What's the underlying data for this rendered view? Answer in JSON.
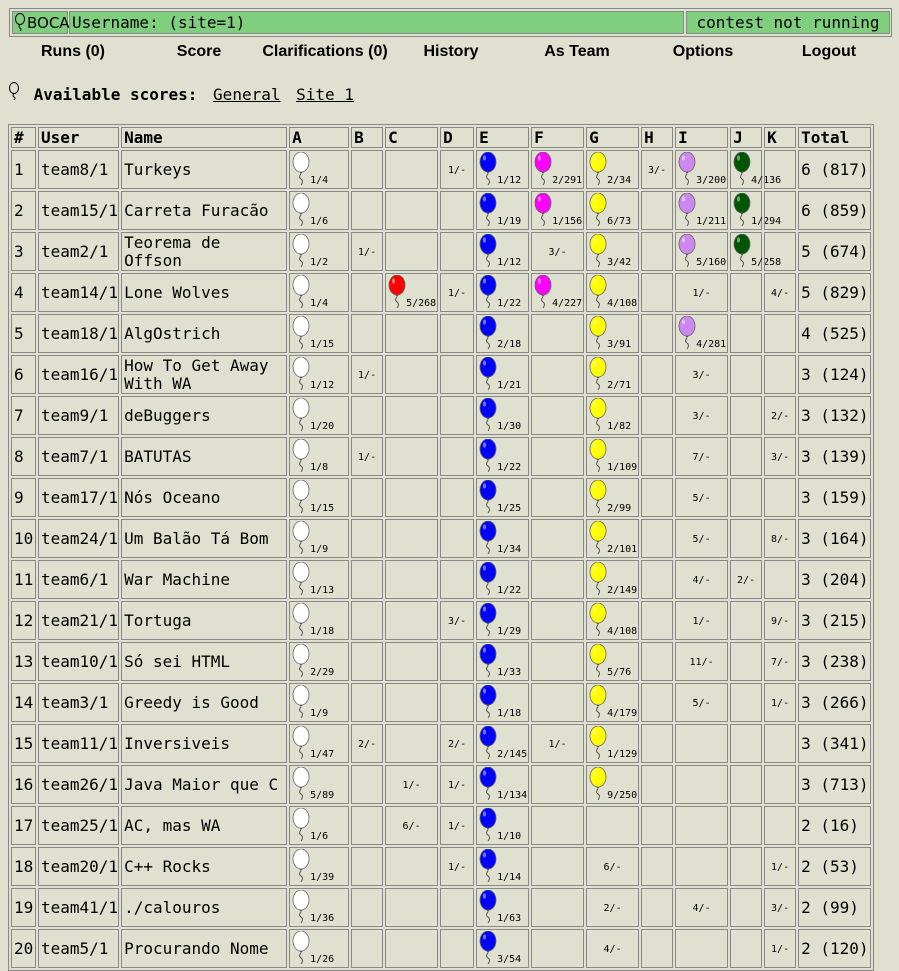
{
  "logo": {
    "text": "BOCA"
  },
  "header": {
    "username": "Username: (site=1)",
    "status": "contest not running"
  },
  "menu": [
    "Runs (0)",
    "Score",
    "Clarifications (0)",
    "History",
    "As Team",
    "Options",
    "Logout"
  ],
  "available": {
    "label": "Available scores:",
    "links": [
      "General",
      "Site 1"
    ]
  },
  "columns": [
    "#",
    "User",
    "Name",
    "A",
    "B",
    "C",
    "D",
    "E",
    "F",
    "G",
    "H",
    "I",
    "J",
    "K",
    "Total"
  ],
  "balloon_colors": {
    "A": "#ffffff",
    "C": "#ff0000",
    "E": "#0000ff",
    "F": "#ff00ff",
    "G": "#ffff00",
    "I": "#cc88ee",
    "J": "#005500"
  },
  "rows": [
    {
      "pos": "1",
      "user": "team8/1",
      "name": "Turkeys",
      "cells": {
        "A": "1/4",
        "D": "1/-",
        "E": "1/12",
        "F": "2/291",
        "G": "2/34",
        "H": "3/-",
        "I": "3/200",
        "J": "4/136"
      },
      "solved": [
        "A",
        "E",
        "F",
        "G",
        "I",
        "J"
      ],
      "total": "6 (817)"
    },
    {
      "pos": "2",
      "user": "team15/1",
      "name": "Carreta Furacão",
      "cells": {
        "A": "1/6",
        "E": "1/19",
        "F": "1/156",
        "G": "6/73",
        "I": "1/211",
        "J": "1/294"
      },
      "solved": [
        "A",
        "E",
        "F",
        "G",
        "I",
        "J"
      ],
      "total": "6 (859)"
    },
    {
      "pos": "3",
      "user": "team2/1",
      "name": "Teorema de Offson",
      "cells": {
        "A": "1/2",
        "B": "1/-",
        "E": "1/12",
        "F": "3/-",
        "G": "3/42",
        "I": "5/160",
        "J": "5/258"
      },
      "solved": [
        "A",
        "E",
        "G",
        "I",
        "J"
      ],
      "total": "5 (674)"
    },
    {
      "pos": "4",
      "user": "team14/1",
      "name": "Lone Wolves",
      "cells": {
        "A": "1/4",
        "C": "5/268",
        "D": "1/-",
        "E": "1/22",
        "F": "4/227",
        "G": "4/108",
        "I": "1/-",
        "K": "4/-"
      },
      "solved": [
        "A",
        "C",
        "E",
        "F",
        "G"
      ],
      "total": "5 (829)"
    },
    {
      "pos": "5",
      "user": "team18/1",
      "name": "AlgOstrich",
      "cells": {
        "A": "1/15",
        "E": "2/18",
        "G": "3/91",
        "I": "4/281"
      },
      "solved": [
        "A",
        "E",
        "G",
        "I"
      ],
      "total": "4 (525)"
    },
    {
      "pos": "6",
      "user": "team16/1",
      "name": "How To Get Away With WA",
      "cells": {
        "A": "1/12",
        "B": "1/-",
        "E": "1/21",
        "G": "2/71",
        "I": "3/-"
      },
      "solved": [
        "A",
        "E",
        "G"
      ],
      "total": "3 (124)"
    },
    {
      "pos": "7",
      "user": "team9/1",
      "name": "deBuggers",
      "cells": {
        "A": "1/20",
        "E": "1/30",
        "G": "1/82",
        "I": "3/-",
        "K": "2/-"
      },
      "solved": [
        "A",
        "E",
        "G"
      ],
      "total": "3 (132)"
    },
    {
      "pos": "8",
      "user": "team7/1",
      "name": "BATUTAS",
      "cells": {
        "A": "1/8",
        "B": "1/-",
        "E": "1/22",
        "G": "1/109",
        "I": "7/-",
        "K": "3/-"
      },
      "solved": [
        "A",
        "E",
        "G"
      ],
      "total": "3 (139)"
    },
    {
      "pos": "9",
      "user": "team17/1",
      "name": "Nós Oceano",
      "cells": {
        "A": "1/15",
        "E": "1/25",
        "G": "2/99",
        "I": "5/-"
      },
      "solved": [
        "A",
        "E",
        "G"
      ],
      "total": "3 (159)"
    },
    {
      "pos": "10",
      "user": "team24/1",
      "name": "Um Balão Tá Bom",
      "cells": {
        "A": "1/9",
        "E": "1/34",
        "G": "2/101",
        "I": "5/-",
        "K": "8/-"
      },
      "solved": [
        "A",
        "E",
        "G"
      ],
      "total": "3 (164)"
    },
    {
      "pos": "11",
      "user": "team6/1",
      "name": "War Machine",
      "cells": {
        "A": "1/13",
        "E": "1/22",
        "G": "2/149",
        "I": "4/-",
        "J": "2/-"
      },
      "solved": [
        "A",
        "E",
        "G"
      ],
      "total": "3 (204)"
    },
    {
      "pos": "12",
      "user": "team21/1",
      "name": "Tortuga",
      "cells": {
        "A": "1/18",
        "D": "3/-",
        "E": "1/29",
        "G": "4/108",
        "I": "1/-",
        "K": "9/-"
      },
      "solved": [
        "A",
        "E",
        "G"
      ],
      "total": "3 (215)"
    },
    {
      "pos": "13",
      "user": "team10/1",
      "name": "Só sei HTML",
      "cells": {
        "A": "2/29",
        "E": "1/33",
        "G": "5/76",
        "I": "11/-",
        "K": "7/-"
      },
      "solved": [
        "A",
        "E",
        "G"
      ],
      "total": "3 (238)"
    },
    {
      "pos": "14",
      "user": "team3/1",
      "name": "Greedy is Good",
      "cells": {
        "A": "1/9",
        "E": "1/18",
        "G": "4/179",
        "I": "5/-",
        "K": "1/-"
      },
      "solved": [
        "A",
        "E",
        "G"
      ],
      "total": "3 (266)"
    },
    {
      "pos": "15",
      "user": "team11/1",
      "name": "Inversiveis",
      "cells": {
        "A": "1/47",
        "B": "2/-",
        "D": "2/-",
        "E": "2/145",
        "F": "1/-",
        "G": "1/129"
      },
      "solved": [
        "A",
        "E",
        "G"
      ],
      "total": "3 (341)"
    },
    {
      "pos": "16",
      "user": "team26/1",
      "name": "Java Maior que C",
      "cells": {
        "A": "5/89",
        "C": "1/-",
        "D": "1/-",
        "E": "1/134",
        "G": "9/250"
      },
      "solved": [
        "A",
        "E",
        "G"
      ],
      "total": "3 (713)"
    },
    {
      "pos": "17",
      "user": "team25/1",
      "name": "AC, mas WA",
      "cells": {
        "A": "1/6",
        "C": "6/-",
        "D": "1/-",
        "E": "1/10"
      },
      "solved": [
        "A",
        "E"
      ],
      "total": "2 (16)"
    },
    {
      "pos": "18",
      "user": "team20/1",
      "name": "C++ Rocks",
      "cells": {
        "A": "1/39",
        "D": "1/-",
        "E": "1/14",
        "G": "6/-",
        "K": "1/-"
      },
      "solved": [
        "A",
        "E"
      ],
      "total": "2 (53)"
    },
    {
      "pos": "19",
      "user": "team41/1",
      "name": "./calouros",
      "cells": {
        "A": "1/36",
        "E": "1/63",
        "G": "2/-",
        "I": "4/-",
        "K": "3/-"
      },
      "solved": [
        "A",
        "E"
      ],
      "total": "2 (99)"
    },
    {
      "pos": "20",
      "user": "team5/1",
      "name": "Procurando Nome",
      "cells": {
        "A": "1/26",
        "E": "3/54",
        "G": "4/-",
        "K": "1/-"
      },
      "solved": [
        "A",
        "E"
      ],
      "total": "2 (120)"
    }
  ]
}
